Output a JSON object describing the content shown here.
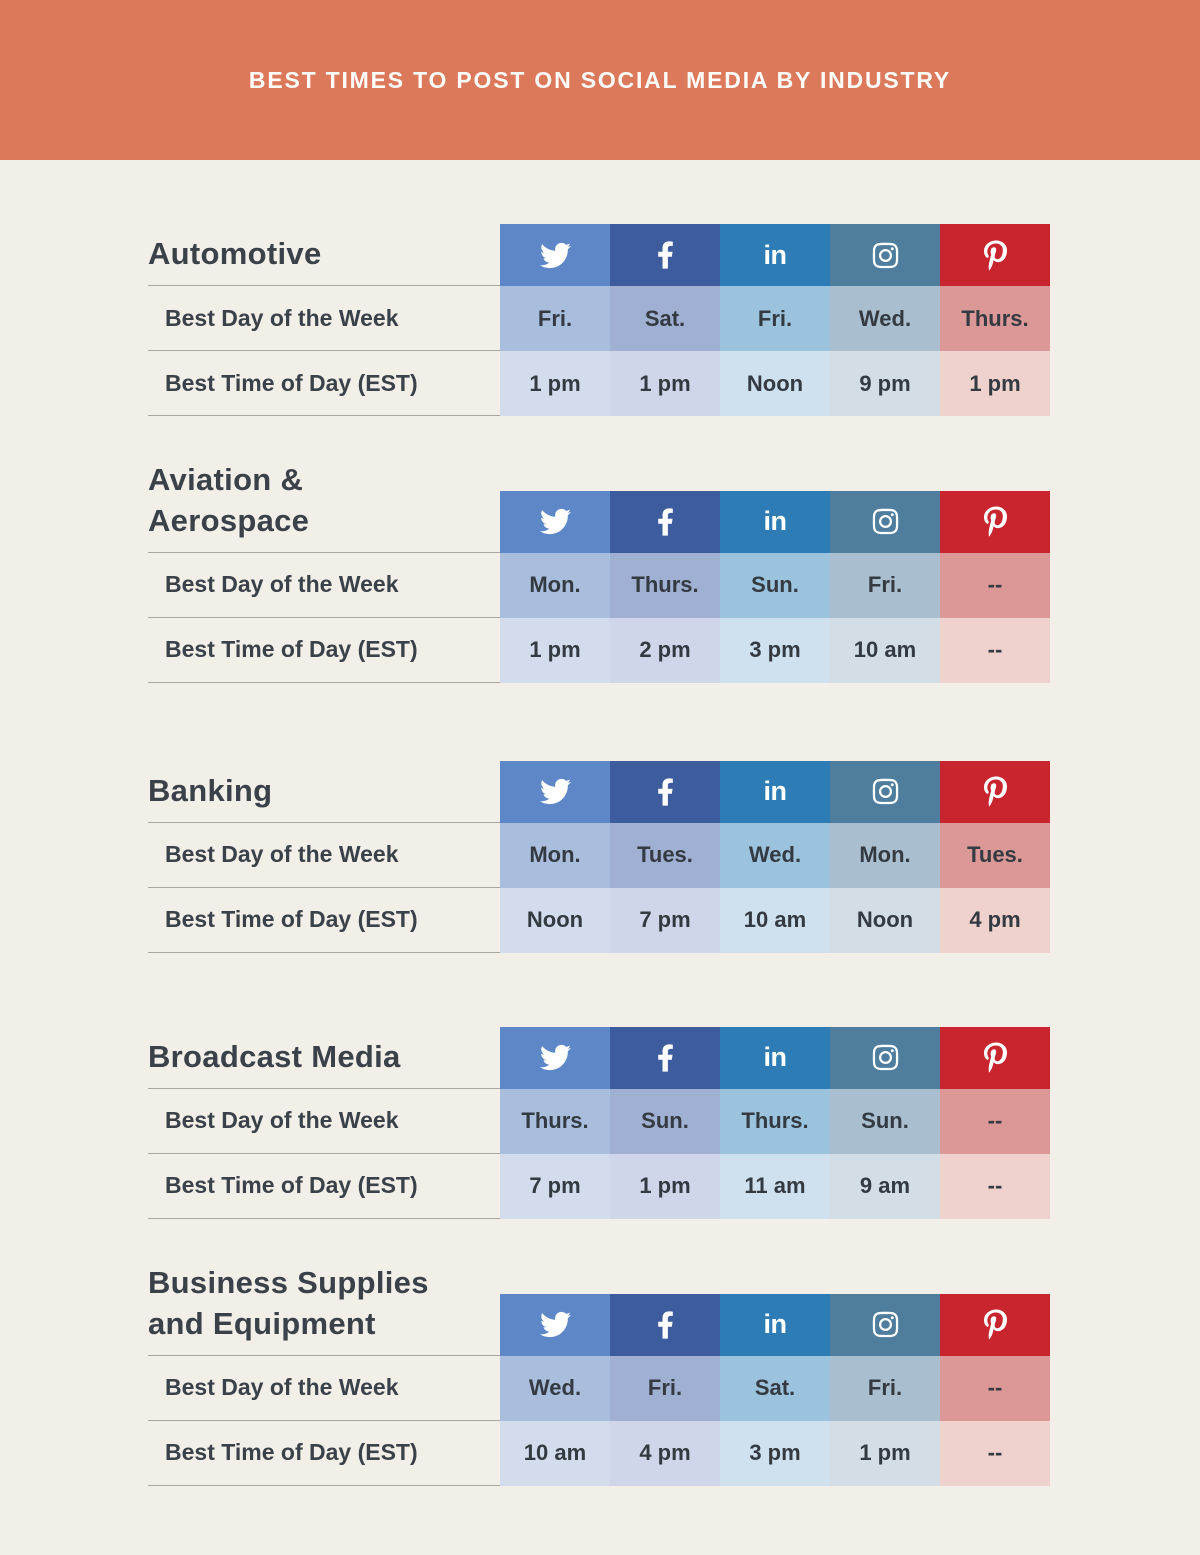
{
  "header": {
    "title": "BEST TIMES TO POST ON SOCIAL MEDIA BY INDUSTRY",
    "background": "#dc795b",
    "text_color": "#fdfcf8"
  },
  "row_labels": {
    "day": "Best Day of the Week",
    "time": "Best Time of Day (EST)"
  },
  "platforms": [
    {
      "name": "twitter",
      "icon": "twitter-bird-icon",
      "header_color": "#5d87c6",
      "day_color": "#a9bedd",
      "time_color": "#d3dcec"
    },
    {
      "name": "facebook",
      "icon": "facebook-f-icon",
      "header_color": "#3d5c9e",
      "day_color": "#a0b0d2",
      "time_color": "#cfd6e9"
    },
    {
      "name": "linkedin",
      "icon": "linkedin-in-icon",
      "header_color": "#2d7cb5",
      "day_color": "#9cc3de",
      "time_color": "#cfe1ef"
    },
    {
      "name": "instagram",
      "icon": "instagram-camera-icon",
      "header_color": "#4e7d9e",
      "day_color": "#a9bfcf",
      "time_color": "#d3dde5"
    },
    {
      "name": "pinterest",
      "icon": "pinterest-p-icon",
      "header_color": "#c8252e",
      "day_color": "#db9896",
      "time_color": "#efd1cd"
    }
  ],
  "chart_data": {
    "type": "table",
    "title": "BEST TIMES TO POST ON SOCIAL MEDIA BY INDUSTRY",
    "columns": [
      "Twitter",
      "Facebook",
      "LinkedIn",
      "Instagram",
      "Pinterest"
    ],
    "row_labels": [
      "Best Day of the Week",
      "Best Time of Day (EST)"
    ],
    "industries": [
      {
        "name": "Automotive",
        "best_day": [
          "Fri.",
          "Sat.",
          "Fri.",
          "Wed.",
          "Thurs."
        ],
        "best_time": [
          "1 pm",
          "1 pm",
          "Noon",
          "9 pm",
          "1 pm"
        ]
      },
      {
        "name": "Aviation & Aerospace",
        "best_day": [
          "Mon.",
          "Thurs.",
          "Sun.",
          "Fri.",
          "--"
        ],
        "best_time": [
          "1 pm",
          "2 pm",
          "3 pm",
          "10 am",
          "--"
        ]
      },
      {
        "name": "Banking",
        "best_day": [
          "Mon.",
          "Tues.",
          "Wed.",
          "Mon.",
          "Tues."
        ],
        "best_time": [
          "Noon",
          "7 pm",
          "10 am",
          "Noon",
          "4 pm"
        ]
      },
      {
        "name": "Broadcast Media",
        "best_day": [
          "Thurs.",
          "Sun.",
          "Thurs.",
          "Sun.",
          "--"
        ],
        "best_time": [
          "7 pm",
          "1 pm",
          "11 am",
          "9 am",
          "--"
        ]
      },
      {
        "name": "Business Supplies and Equipment",
        "best_day": [
          "Wed.",
          "Fri.",
          "Sat.",
          "Fri.",
          "--"
        ],
        "best_time": [
          "10 am",
          "4 pm",
          "3 pm",
          "1 pm",
          "--"
        ]
      }
    ]
  }
}
